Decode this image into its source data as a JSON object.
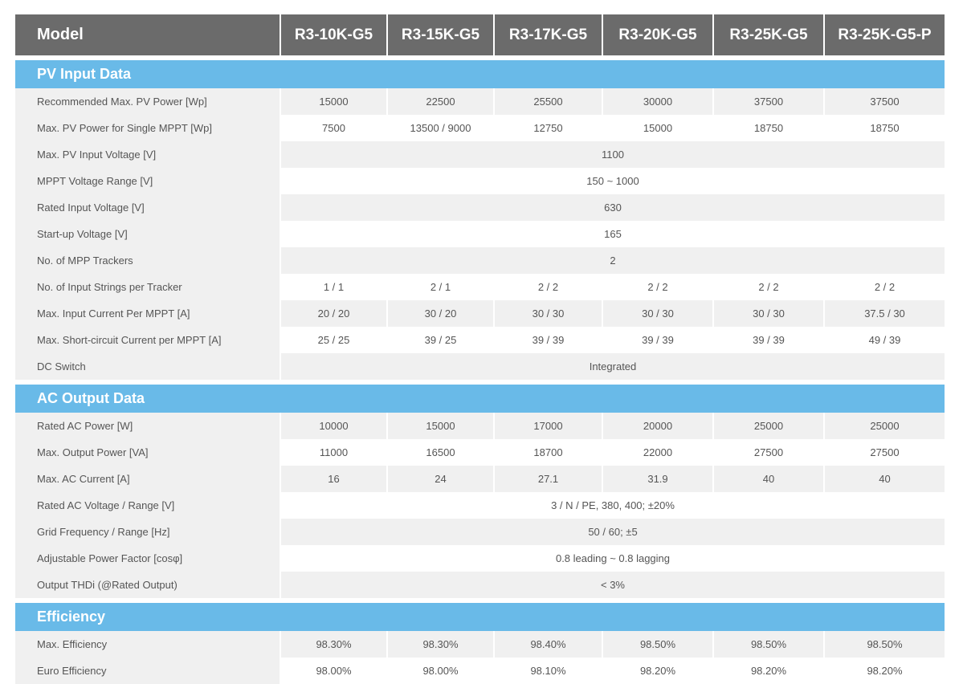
{
  "header": {
    "label": "Model",
    "models": [
      "R3-10K-G5",
      "R3-15K-G5",
      "R3-17K-G5",
      "R3-20K-G5",
      "R3-25K-G5",
      "R3-25K-G5-P"
    ]
  },
  "sections": [
    {
      "title": "PV Input Data",
      "rows": [
        {
          "label": "Recommended Max. PV Power [Wp]",
          "values": [
            "15000",
            "22500",
            "25500",
            "30000",
            "37500",
            "37500"
          ]
        },
        {
          "label": "Max. PV Power for Single MPPT [Wp]",
          "values": [
            "7500",
            "13500 / 9000",
            "12750",
            "15000",
            "18750",
            "18750"
          ]
        },
        {
          "label": "Max. PV Input Voltage [V]",
          "values": [
            "1100"
          ]
        },
        {
          "label": "MPPT Voltage Range [V]",
          "values": [
            "150 ~ 1000"
          ]
        },
        {
          "label": "Rated Input Voltage [V]",
          "values": [
            "630"
          ]
        },
        {
          "label": "Start-up Voltage [V]",
          "values": [
            "165"
          ]
        },
        {
          "label": "No. of MPP Trackers",
          "values": [
            "2"
          ]
        },
        {
          "label": "No. of Input Strings per Tracker",
          "values": [
            "1 / 1",
            "2 / 1",
            "2 / 2",
            "2 / 2",
            "2 / 2",
            "2 / 2"
          ]
        },
        {
          "label": "Max. Input Current Per MPPT [A]",
          "values": [
            "20 / 20",
            "30 / 20",
            "30 / 30",
            "30 / 30",
            "30 / 30",
            "37.5 / 30"
          ]
        },
        {
          "label": "Max. Short-circuit Current per MPPT [A]",
          "values": [
            "25 / 25",
            "39 / 25",
            "39 / 39",
            "39 / 39",
            "39 / 39",
            "49 / 39"
          ]
        },
        {
          "label": "DC Switch",
          "values": [
            "Integrated"
          ]
        }
      ]
    },
    {
      "title": "AC Output Data",
      "rows": [
        {
          "label": "Rated AC Power [W]",
          "values": [
            "10000",
            "15000",
            "17000",
            "20000",
            "25000",
            "25000"
          ]
        },
        {
          "label": "Max. Output Power [VA]",
          "values": [
            "11000",
            "16500",
            "18700",
            "22000",
            "27500",
            "27500"
          ]
        },
        {
          "label": "Max. AC Current [A]",
          "values": [
            "16",
            "24",
            "27.1",
            "31.9",
            "40",
            "40"
          ]
        },
        {
          "label": "Rated AC Voltage / Range [V]",
          "values": [
            "3 / N / PE, 380, 400; ±20%"
          ]
        },
        {
          "label": "Grid Frequency / Range [Hz]",
          "values": [
            "50 / 60; ±5"
          ]
        },
        {
          "label": "Adjustable Power Factor [cosφ]",
          "values": [
            "0.8 leading ~ 0.8 lagging"
          ]
        },
        {
          "label": "Output THDi (@Rated Output)",
          "values": [
            "< 3%"
          ]
        }
      ]
    },
    {
      "title": "Efficiency",
      "rows": [
        {
          "label": "Max. Efficiency",
          "values": [
            "98.30%",
            "98.30%",
            "98.40%",
            "98.50%",
            "98.50%",
            "98.50%"
          ]
        },
        {
          "label": "Euro Efficiency",
          "values": [
            "98.00%",
            "98.00%",
            "98.10%",
            "98.20%",
            "98.20%",
            "98.20%"
          ]
        }
      ]
    }
  ]
}
